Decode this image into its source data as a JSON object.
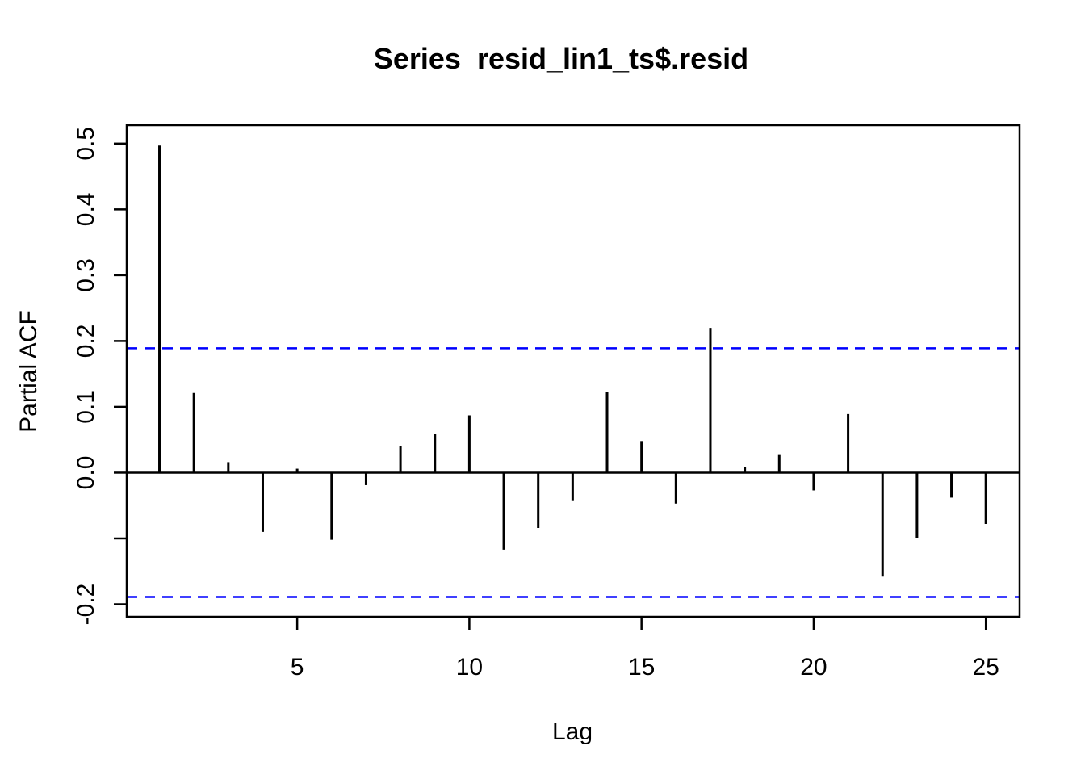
{
  "chart_data": {
    "type": "bar",
    "subtype": "stem-pacf",
    "title": "Series  resid_lin1_ts$.resid",
    "xlabel": "Lag",
    "ylabel": "Partial ACF",
    "x": [
      1,
      2,
      3,
      4,
      5,
      6,
      7,
      8,
      9,
      10,
      11,
      12,
      13,
      14,
      15,
      16,
      17,
      18,
      19,
      20,
      21,
      22,
      23,
      24,
      25
    ],
    "values": [
      0.497,
      0.121,
      0.016,
      -0.09,
      0.006,
      -0.102,
      -0.019,
      0.04,
      0.059,
      0.087,
      -0.117,
      -0.084,
      -0.042,
      0.123,
      0.048,
      -0.047,
      0.22,
      0.009,
      0.028,
      -0.027,
      0.089,
      -0.158,
      -0.099,
      -0.038,
      -0.078
    ],
    "confidence_bounds": {
      "upper": 0.189,
      "lower": -0.189,
      "line_style": "dashed",
      "color": "#0000ff"
    },
    "zero_line": 0.0,
    "xticks": [
      5,
      10,
      15,
      20,
      25
    ],
    "yticks": [
      {
        "value": 0.5,
        "label": "0.5"
      },
      {
        "value": 0.4,
        "label": "0.4"
      },
      {
        "value": 0.3,
        "label": "0.3"
      },
      {
        "value": 0.2,
        "label": "0.2"
      },
      {
        "value": 0.1,
        "label": "0.1"
      },
      {
        "value": 0.0,
        "label": "0.0"
      },
      {
        "value": -0.1,
        "label": ""
      },
      {
        "value": -0.2,
        "label": "-0.2"
      }
    ],
    "xlim": [
      0.05,
      25.98
    ],
    "ylim": [
      -0.219,
      0.528
    ],
    "grid": false,
    "legend": null,
    "colors": {
      "bar": "#000000",
      "axis": "#000000",
      "background": "#ffffff"
    }
  }
}
